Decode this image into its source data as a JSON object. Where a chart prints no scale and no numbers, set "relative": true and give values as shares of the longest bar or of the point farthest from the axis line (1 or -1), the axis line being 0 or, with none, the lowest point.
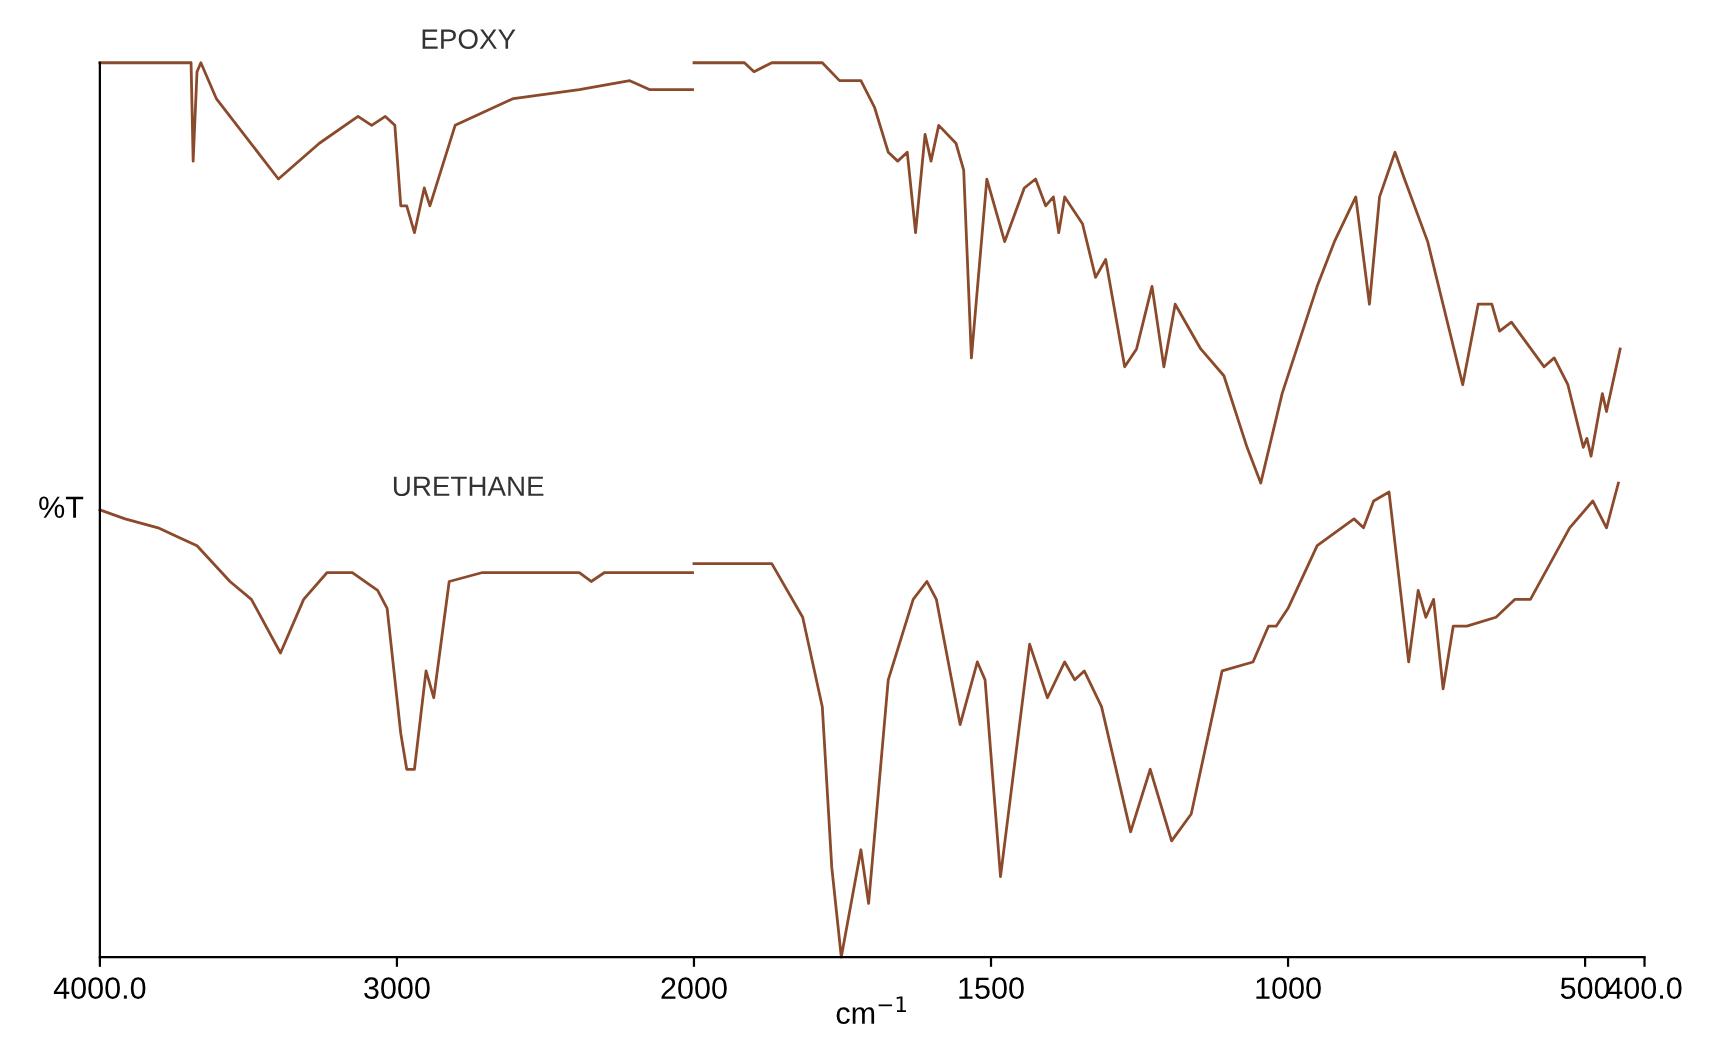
{
  "chart_data": [
    {
      "type": "line",
      "relative": true,
      "ylabel": "%T",
      "xlim": [
        4000,
        2000
      ],
      "xticks": [
        {
          "value": 4000,
          "label": "4000.0"
        },
        3000
      ],
      "grid": false,
      "legend": false,
      "marker": "none",
      "line_style": "solid",
      "series": [
        {
          "name": "EPOXY",
          "color": "#8b4a2b",
          "x": [
            4000,
            3720,
            3693,
            3686,
            3673,
            3660,
            3608,
            3399,
            3261,
            3131,
            3085,
            3039,
            3007,
            2987,
            2967,
            2941,
            2908,
            2889,
            2804,
            2608,
            2386,
            2216,
            2150,
            2085,
            2039,
            2000
          ],
          "values": [
            1.0,
            1.0,
            1.0,
            0.89,
            0.99,
            1.0,
            0.96,
            0.87,
            0.91,
            0.94,
            0.93,
            0.94,
            0.93,
            0.84,
            0.84,
            0.81,
            0.86,
            0.84,
            0.93,
            0.96,
            0.97,
            0.98,
            0.97,
            0.97,
            0.97,
            0.97
          ]
        },
        {
          "name": "URETHANE",
          "color": "#8b4a2b",
          "x": [
            4000,
            3915,
            3804,
            3739,
            3673,
            3562,
            3490,
            3392,
            3314,
            3235,
            3150,
            3065,
            3033,
            2987,
            2967,
            2941,
            2902,
            2876,
            2824,
            2712,
            2386,
            2346,
            2301,
            2000
          ],
          "values": [
            0.5,
            0.49,
            0.48,
            0.47,
            0.46,
            0.42,
            0.4,
            0.34,
            0.4,
            0.43,
            0.43,
            0.41,
            0.39,
            0.25,
            0.21,
            0.21,
            0.32,
            0.29,
            0.42,
            0.43,
            0.43,
            0.42,
            0.43,
            0.43
          ]
        }
      ]
    },
    {
      "type": "line",
      "relative": true,
      "xlabel": "cm$^{−1}$",
      "xlim": [
        2000,
        400
      ],
      "xticks": [
        2000,
        1500,
        1000,
        500,
        {
          "value": 400,
          "label": "400.0"
        }
      ],
      "grid": false,
      "legend": false,
      "marker": "none",
      "line_style": "solid",
      "tick_labels": "x",
      "series": [
        {
          "color": "#8b4a2b",
          "x": [
            2000,
            1915,
            1899,
            1869,
            1784,
            1755,
            1719,
            1696,
            1673,
            1657,
            1641,
            1627,
            1611,
            1601,
            1588,
            1559,
            1546,
            1533,
            1507,
            1477,
            1444,
            1425,
            1408,
            1395,
            1386,
            1376,
            1346,
            1324,
            1307,
            1275,
            1255,
            1229,
            1209,
            1190,
            1147,
            1108,
            1069,
            1046,
            1010,
            951,
            922,
            886,
            863,
            846,
            820,
            804,
            765,
            706,
            680,
            657,
            644,
            624,
            569,
            552,
            529,
            503,
            497,
            490,
            471,
            464,
            441
          ],
          "values": [
            1.0,
            1.0,
            0.99,
            1.0,
            1.0,
            0.98,
            0.98,
            0.95,
            0.9,
            0.89,
            0.9,
            0.81,
            0.92,
            0.89,
            0.93,
            0.91,
            0.88,
            0.67,
            0.87,
            0.8,
            0.86,
            0.87,
            0.84,
            0.85,
            0.81,
            0.85,
            0.82,
            0.76,
            0.78,
            0.66,
            0.68,
            0.75,
            0.66,
            0.73,
            0.68,
            0.65,
            0.57,
            0.53,
            0.63,
            0.75,
            0.8,
            0.85,
            0.73,
            0.85,
            0.9,
            0.87,
            0.8,
            0.64,
            0.73,
            0.73,
            0.7,
            0.71,
            0.66,
            0.67,
            0.64,
            0.57,
            0.58,
            0.56,
            0.63,
            0.61,
            0.68
          ]
        },
        {
          "color": "#8b4a2b",
          "x": [
            2000,
            1980,
            1935,
            1869,
            1817,
            1784,
            1768,
            1752,
            1719,
            1706,
            1673,
            1631,
            1608,
            1592,
            1552,
            1523,
            1510,
            1484,
            1435,
            1405,
            1376,
            1359,
            1343,
            1314,
            1265,
            1232,
            1196,
            1163,
            1111,
            1059,
            1033,
            1020,
            1000,
            951,
            889,
            873,
            856,
            830,
            797,
            781,
            768,
            755,
            739,
            722,
            699,
            650,
            618,
            592,
            526,
            487,
            464,
            444
          ],
          "values": [
            0.44,
            0.44,
            0.44,
            0.44,
            0.38,
            0.28,
            0.1,
            0.0,
            0.12,
            0.06,
            0.31,
            0.4,
            0.42,
            0.4,
            0.26,
            0.33,
            0.31,
            0.09,
            0.35,
            0.29,
            0.33,
            0.31,
            0.32,
            0.28,
            0.14,
            0.21,
            0.13,
            0.16,
            0.32,
            0.33,
            0.37,
            0.37,
            0.39,
            0.46,
            0.49,
            0.48,
            0.51,
            0.52,
            0.33,
            0.41,
            0.38,
            0.4,
            0.3,
            0.37,
            0.37,
            0.38,
            0.4,
            0.4,
            0.48,
            0.51,
            0.48,
            0.53
          ]
        }
      ]
    }
  ]
}
